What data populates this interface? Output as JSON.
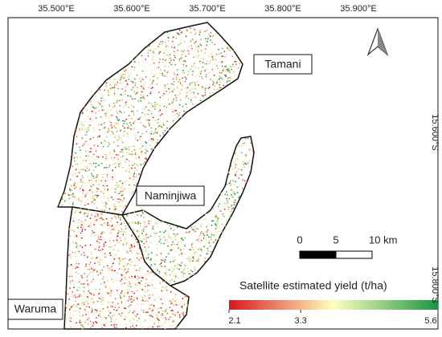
{
  "map": {
    "top_labels": [
      "35.500°E",
      "35.600°E",
      "35.700°E",
      "35.800°E",
      "35.900°E"
    ],
    "right_labels": [
      "15.600°S",
      "15.800°S"
    ],
    "regions": [
      "Tamani",
      "Naminjiwa",
      "Waruma"
    ],
    "scale_bar": {
      "ticks": [
        0,
        5,
        {
          "value": 10,
          "label": "10 km"
        }
      ]
    },
    "legend": {
      "title": "Satellite estimated yield (t/ha)",
      "ticks": [
        2.1,
        3.3,
        5.6
      ],
      "range": [
        2.1,
        5.6
      ],
      "colors": [
        "#d7191c",
        "#ffffbf",
        "#1a9641"
      ]
    }
  }
}
